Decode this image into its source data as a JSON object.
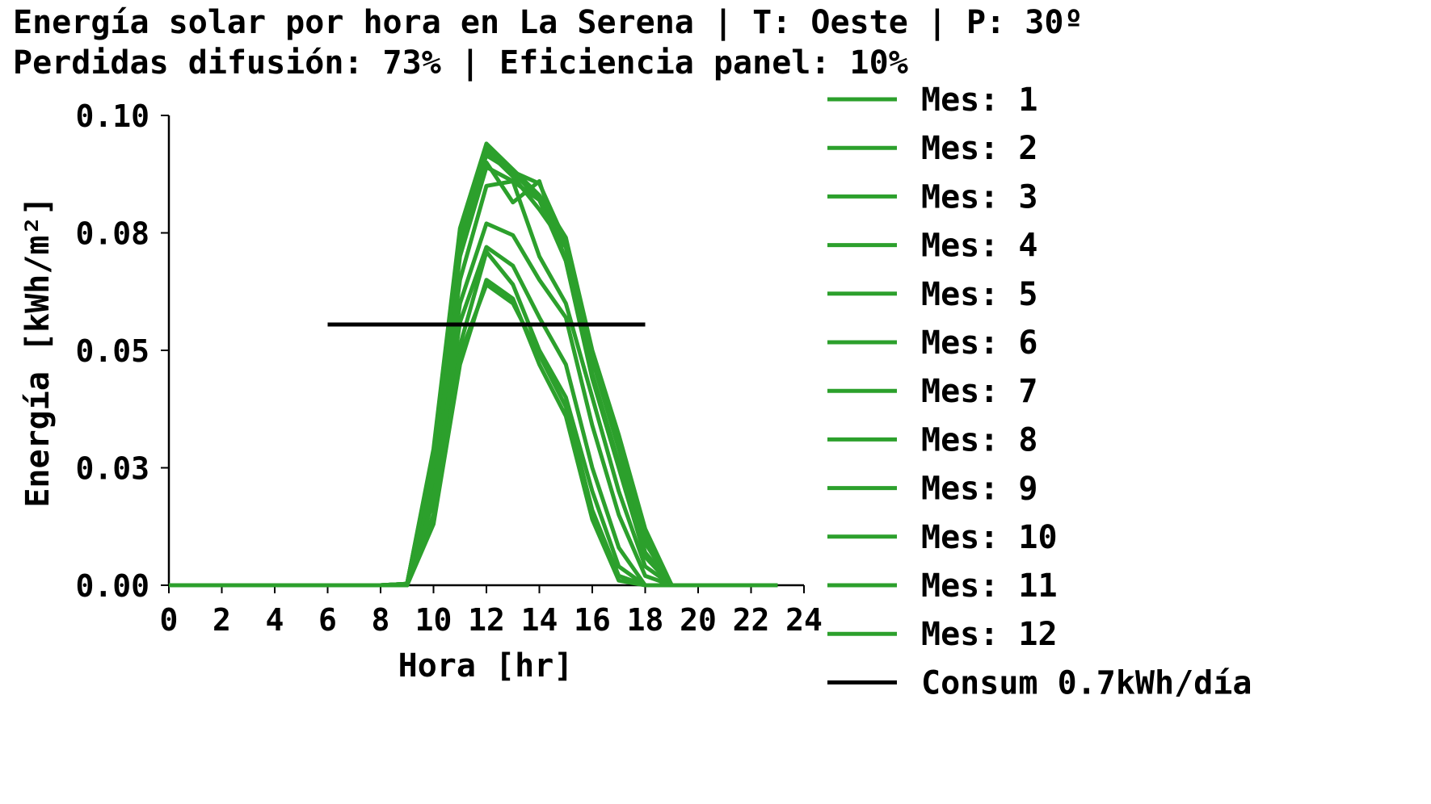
{
  "chart_data": {
    "type": "line",
    "title_line1": "Energía solar por hora en La Serena | T: Oeste | P: 30º",
    "title_line2": "Perdidas difusión: 73% | Eficiencia panel: 10%",
    "xlabel": "Hora [hr]",
    "ylabel": "Energía [kWh/m²]",
    "xlim": [
      0,
      24
    ],
    "ylim": [
      0,
      0.1
    ],
    "xticks": [
      0,
      2,
      4,
      6,
      8,
      10,
      12,
      14,
      16,
      18,
      20,
      22,
      24
    ],
    "yticks": [
      {
        "value": 0.0,
        "label": "0.00"
      },
      {
        "value": 0.025,
        "label": "0.03"
      },
      {
        "value": 0.05,
        "label": "0.05"
      },
      {
        "value": 0.075,
        "label": "0.08"
      },
      {
        "value": 0.1,
        "label": "0.10"
      }
    ],
    "grid": false,
    "legend_position": "right",
    "colors": {
      "months": "#2ca02c",
      "consumption": "#000000"
    },
    "x": [
      0,
      1,
      2,
      3,
      4,
      5,
      6,
      7,
      8,
      9,
      10,
      11,
      12,
      13,
      14,
      15,
      16,
      17,
      18,
      19,
      20,
      21,
      22,
      23
    ],
    "series": [
      {
        "name": "Mes: 1",
        "values": [
          0,
          0,
          0,
          0,
          0,
          0,
          0,
          0,
          0,
          0.0003,
          0.0285,
          0.0755,
          0.0935,
          0.088,
          0.0855,
          0.073,
          0.049,
          0.031,
          0.011,
          0,
          0,
          0,
          0,
          0
        ]
      },
      {
        "name": "Mes: 2",
        "values": [
          0,
          0,
          0,
          0,
          0,
          0,
          0,
          0,
          0,
          0.0003,
          0.028,
          0.0745,
          0.0925,
          0.087,
          0.08,
          0.072,
          0.048,
          0.029,
          0.009,
          0,
          0,
          0,
          0,
          0
        ]
      },
      {
        "name": "Mes: 3",
        "values": [
          0,
          0,
          0,
          0,
          0,
          0,
          0,
          0,
          0,
          0.0003,
          0.025,
          0.07,
          0.089,
          0.086,
          0.082,
          0.069,
          0.044,
          0.025,
          0.006,
          0,
          0,
          0,
          0,
          0
        ]
      },
      {
        "name": "Mes: 4",
        "values": [
          0,
          0,
          0,
          0,
          0,
          0,
          0,
          0,
          0,
          0,
          0.02,
          0.06,
          0.077,
          0.0745,
          0.065,
          0.057,
          0.034,
          0.015,
          0.002,
          0,
          0,
          0,
          0,
          0
        ]
      },
      {
        "name": "Mes: 5",
        "values": [
          0,
          0,
          0,
          0,
          0,
          0,
          0,
          0,
          0,
          0,
          0.015,
          0.051,
          0.071,
          0.064,
          0.05,
          0.04,
          0.02,
          0.004,
          0,
          0,
          0,
          0,
          0,
          0
        ]
      },
      {
        "name": "Mes: 6",
        "values": [
          0,
          0,
          0,
          0,
          0,
          0,
          0,
          0,
          0,
          0,
          0.013,
          0.047,
          0.065,
          0.061,
          0.047,
          0.036,
          0.014,
          0.001,
          0,
          0,
          0,
          0,
          0,
          0
        ]
      },
      {
        "name": "Mes: 7",
        "values": [
          0,
          0,
          0,
          0,
          0,
          0,
          0,
          0,
          0,
          0,
          0.014,
          0.049,
          0.064,
          0.06,
          0.049,
          0.038,
          0.016,
          0.002,
          0,
          0,
          0,
          0,
          0,
          0
        ]
      },
      {
        "name": "Mes: 8",
        "values": [
          0,
          0,
          0,
          0,
          0,
          0,
          0,
          0,
          0,
          0,
          0.018,
          0.056,
          0.072,
          0.068,
          0.057,
          0.047,
          0.025,
          0.008,
          0,
          0,
          0,
          0,
          0,
          0
        ]
      },
      {
        "name": "Mes: 9",
        "values": [
          0,
          0,
          0,
          0,
          0,
          0,
          0,
          0,
          0,
          0.0002,
          0.023,
          0.065,
          0.085,
          0.086,
          0.07,
          0.06,
          0.04,
          0.02,
          0.004,
          0,
          0,
          0,
          0,
          0
        ]
      },
      {
        "name": "Mes: 10",
        "values": [
          0,
          0,
          0,
          0,
          0,
          0,
          0,
          0,
          0,
          0.0003,
          0.026,
          0.072,
          0.09,
          0.0815,
          0.086,
          0.069,
          0.045,
          0.026,
          0.007,
          0,
          0,
          0,
          0,
          0
        ]
      },
      {
        "name": "Mes: 11",
        "values": [
          0,
          0,
          0,
          0,
          0,
          0,
          0,
          0,
          0,
          0.0003,
          0.028,
          0.075,
          0.0915,
          0.088,
          0.082,
          0.072,
          0.048,
          0.03,
          0.01,
          0,
          0,
          0,
          0,
          0
        ]
      },
      {
        "name": "Mes: 12",
        "values": [
          0,
          0,
          0,
          0,
          0,
          0,
          0,
          0,
          0,
          0.0003,
          0.029,
          0.076,
          0.094,
          0.0885,
          0.083,
          0.074,
          0.05,
          0.032,
          0.012,
          0,
          0,
          0,
          0,
          0
        ]
      }
    ],
    "consumption": {
      "name": "Consum 0.7kWh/día",
      "x": [
        6,
        18
      ],
      "y": 0.0555
    }
  }
}
